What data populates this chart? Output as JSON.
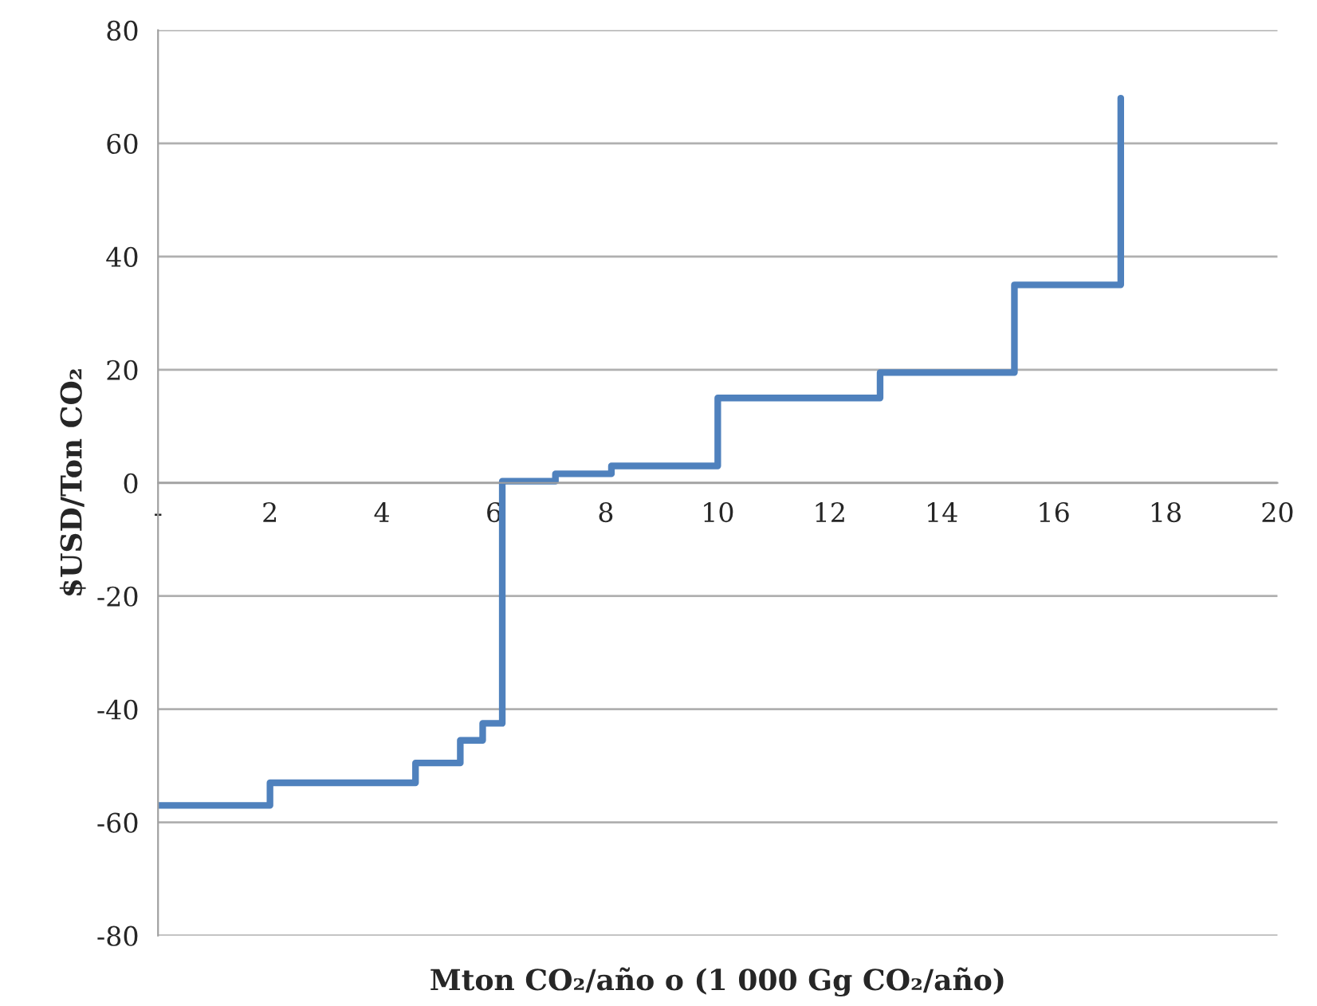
{
  "chart_data": {
    "type": "step",
    "xlabel": "Mton CO₂/año o (1 000 Gg CO₂/año)",
    "ylabel": "$USD/Ton CO₂",
    "x": [
      0,
      2,
      4.6,
      5.4,
      5.8,
      6.15,
      7.1,
      8.1,
      10,
      12.9,
      15.3,
      17.2
    ],
    "series": [
      {
        "color": "#4f81bd",
        "values": [
          -57,
          -53,
          -49.5,
          -45.5,
          -42.5,
          0.3,
          1.6,
          3,
          15,
          19.5,
          35,
          68
        ]
      }
    ],
    "xlim": [
      0,
      20
    ],
    "xticks": [
      {
        "value": 0,
        "label": "-"
      },
      2,
      4,
      6,
      8,
      10,
      12,
      14,
      16,
      18,
      20
    ],
    "ylim": [
      -80,
      80
    ],
    "yticks": [
      -80,
      -60,
      -40,
      -20,
      0,
      20,
      40,
      60,
      80
    ],
    "grid": "y",
    "marker": "none",
    "line_style": "solid"
  }
}
